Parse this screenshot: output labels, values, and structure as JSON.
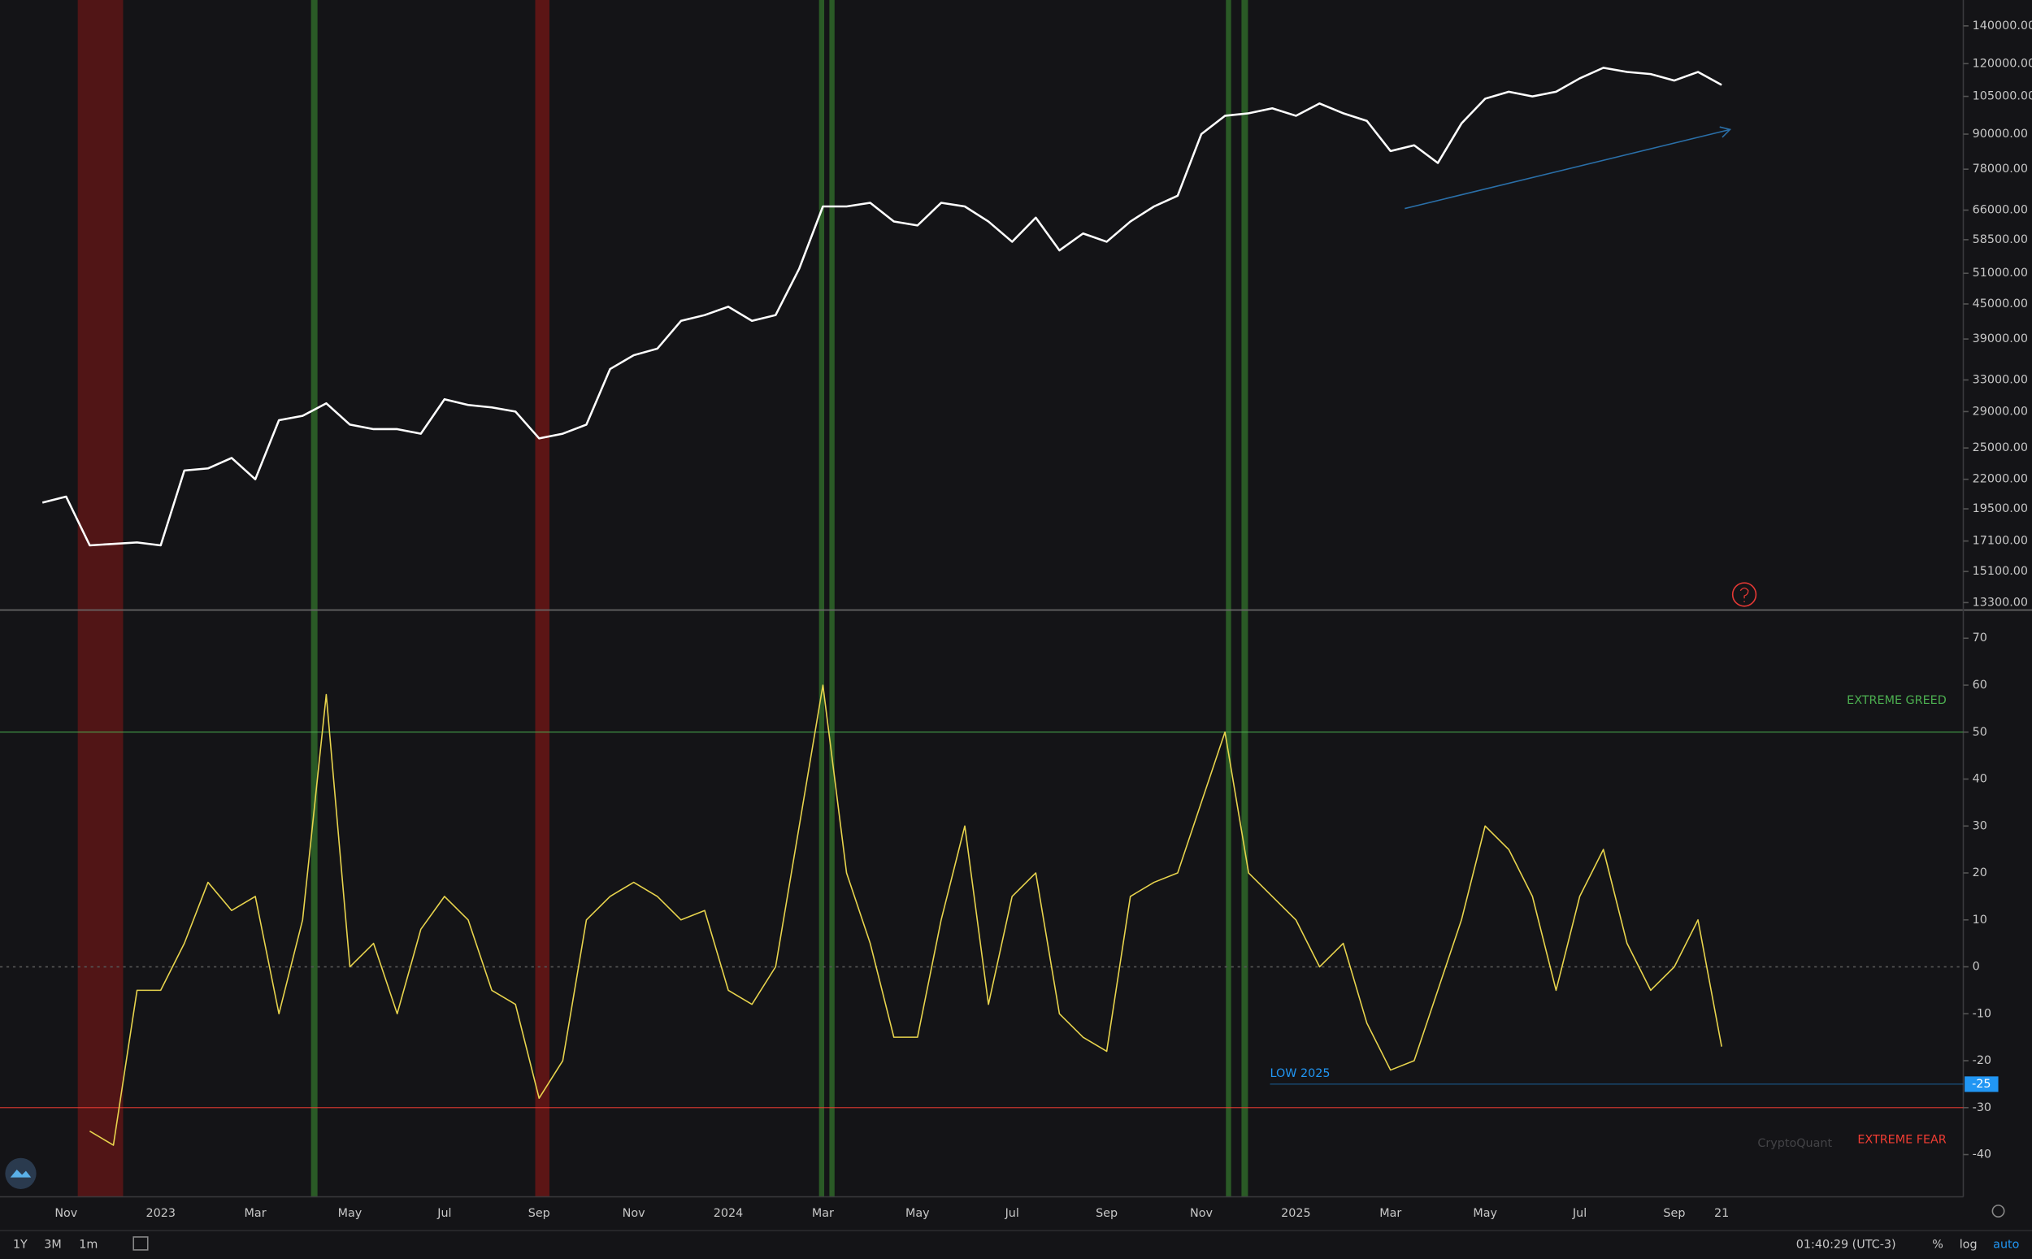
{
  "chart_data": {
    "type": "line",
    "categories": [
      null,
      "Nov",
      null,
      null,
      null,
      "2023",
      null,
      null,
      null,
      "Mar",
      null,
      null,
      null,
      "May",
      null,
      null,
      null,
      "Jul",
      null,
      null,
      null,
      "Sep",
      null,
      null,
      null,
      "Nov",
      null,
      null,
      null,
      "2024",
      null,
      null,
      null,
      "Mar",
      null,
      null,
      null,
      "May",
      null,
      null,
      null,
      "Jul",
      null,
      null,
      null,
      "Sep",
      null,
      null,
      null,
      "Nov",
      null,
      null,
      null,
      "2025",
      null,
      null,
      null,
      "Mar",
      null,
      null,
      null,
      "May",
      null,
      null,
      null,
      "Jul",
      null,
      null,
      null,
      "Sep",
      null,
      "21"
    ],
    "series": [
      {
        "color": "#ffffff",
        "values": [
          20000,
          20500,
          16800,
          16900,
          17000,
          16800,
          22800,
          23000,
          24000,
          22000,
          28000,
          28500,
          30000,
          27500,
          27000,
          27000,
          26500,
          30500,
          29800,
          29500,
          29000,
          26000,
          26500,
          27500,
          34500,
          36500,
          37500,
          42000,
          43000,
          44500,
          42000,
          43000,
          52000,
          67000,
          67000,
          68000,
          63000,
          62000,
          68000,
          67000,
          63000,
          58000,
          64000,
          56000,
          60000,
          58000,
          63000,
          67000,
          70000,
          90000,
          97000,
          98000,
          100000,
          97000,
          102000,
          98000,
          95000,
          84000,
          86000,
          80000,
          94000,
          104000,
          107000,
          105000,
          107000,
          113000,
          118000,
          116000,
          115000,
          112000,
          116000,
          110000
        ]
      },
      {
        "color": "#e8d44d",
        "axis": "y2",
        "values": [
          null,
          null,
          -35,
          -38,
          -5,
          -5,
          5,
          18,
          12,
          15,
          -10,
          10,
          58,
          0,
          5,
          -10,
          8,
          15,
          10,
          -5,
          -8,
          -28,
          -20,
          10,
          15,
          18,
          15,
          10,
          12,
          -5,
          -8,
          0,
          30,
          60,
          20,
          5,
          -15,
          -15,
          10,
          30,
          -8,
          15,
          20,
          -10,
          -15,
          -18,
          15,
          18,
          20,
          35,
          50,
          20,
          15,
          10,
          0,
          5,
          -12,
          -22,
          -20,
          -5,
          10,
          30,
          25,
          15,
          -5,
          15,
          25,
          5,
          -5,
          0,
          10,
          -17
        ]
      }
    ],
    "log_scale": true,
    "ylim": [
      12900,
      155600
    ],
    "yticks": [
      {
        "value": 140000,
        "label": "140000.00"
      },
      {
        "value": 120000,
        "label": "120000.00"
      },
      {
        "value": 105000,
        "label": "105000.00"
      },
      {
        "value": 90000,
        "label": "90000.00"
      },
      {
        "value": 78000,
        "label": "78000.00"
      },
      {
        "value": 66000,
        "label": "66000.00"
      },
      {
        "value": 58500,
        "label": "58500.00"
      },
      {
        "value": 51000,
        "label": "51000.00"
      },
      {
        "value": 45000,
        "label": "45000.00"
      },
      {
        "value": 39000,
        "label": "39000.00"
      },
      {
        "value": 33000,
        "label": "33000.00"
      },
      {
        "value": 29000,
        "label": "29000.00"
      },
      {
        "value": 25000,
        "label": "25000.00"
      },
      {
        "value": 22000,
        "label": "22000.00"
      },
      {
        "value": 19500,
        "label": "19500.00"
      },
      {
        "value": 17100,
        "label": "17100.00"
      },
      {
        "value": 15100,
        "label": "15100.00"
      },
      {
        "value": 13300,
        "label": "13300.00"
      }
    ],
    "y2lim": [
      -49,
      76
    ],
    "y2ticks": [
      70,
      60,
      50,
      40,
      30,
      20,
      10,
      0,
      -10,
      -20,
      -30,
      -40
    ],
    "annotations": [
      {
        "text": "EXTREME GREED",
        "value": 50,
        "color": "#4caf50"
      },
      {
        "text": "EXTREME FEAR",
        "value": -30,
        "color": "#f23d33"
      }
    ],
    "reference_line": {
      "label": "LOW 2025",
      "value": -25,
      "color": "#2196f3"
    }
  },
  "ui": {
    "ranges": [
      "1Y",
      "3M",
      "1m"
    ],
    "clock": "01:40:29 (UTC-3)",
    "scale_options": [
      "%",
      "log",
      "auto"
    ],
    "watermark": "CryptoQuant"
  }
}
